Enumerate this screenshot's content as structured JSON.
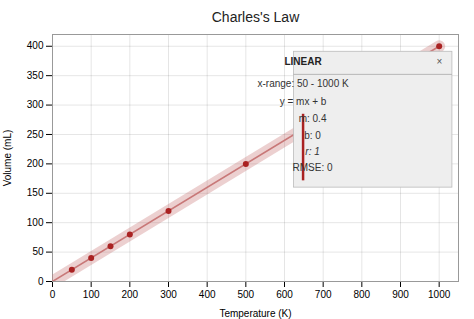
{
  "chart_data": {
    "type": "scatter",
    "title": "Charles's Law",
    "xlabel": "Temperature (K)",
    "ylabel": "Volume (mL)",
    "xlim": [
      0,
      1050
    ],
    "ylim": [
      0,
      420
    ],
    "xticks": [
      0,
      100,
      200,
      300,
      400,
      500,
      600,
      700,
      800,
      900,
      1000
    ],
    "yticks": [
      0,
      50,
      100,
      150,
      200,
      250,
      300,
      350,
      400
    ],
    "grid": true,
    "series": [
      {
        "type": "line",
        "color": "#c87878",
        "x": [
          0,
          1000
        ],
        "values": [
          0,
          400
        ]
      },
      {
        "type": "scatter",
        "color": "#aa2222",
        "x": [
          50,
          100,
          150,
          200,
          300,
          500,
          1000
        ],
        "values": [
          20,
          40,
          60,
          80,
          120,
          200,
          400
        ]
      }
    ],
    "annotations": [
      "LINEAR",
      "×",
      "x-range: 50 - 1000 K",
      "y = mx + b",
      "m: 0.4",
      "b: 0",
      "r: 1",
      "RMSE: 0"
    ]
  }
}
